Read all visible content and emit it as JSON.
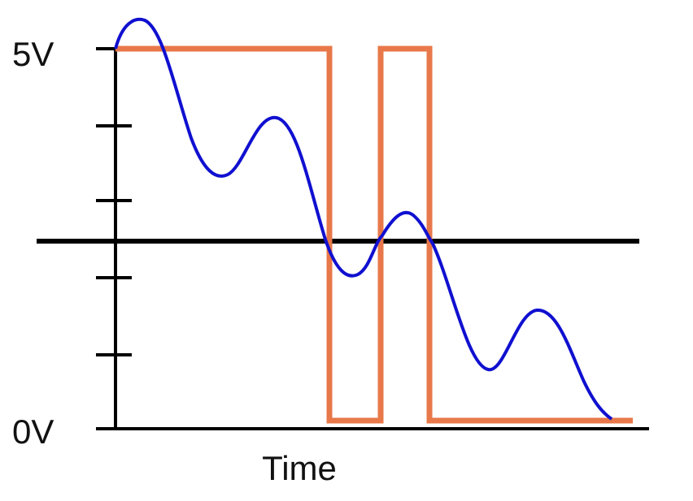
{
  "axis": {
    "top_label": "5V",
    "bottom_label": "0V",
    "x_label": "Time"
  }
}
